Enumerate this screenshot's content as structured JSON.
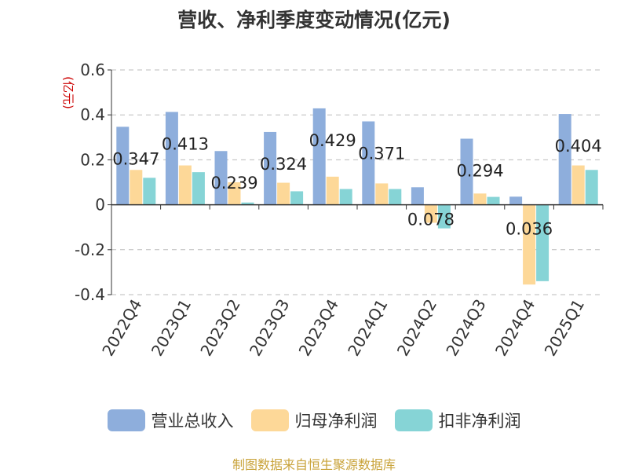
{
  "chart_data": {
    "type": "bar",
    "title": "营收、净利季度变动情况(亿元)",
    "ylabel": "(亿元)",
    "ylim": [
      -0.4,
      0.6
    ],
    "yticks": [
      "0.6",
      "0.4",
      "0.2",
      "0",
      "-0.2",
      "-0.4"
    ],
    "ytick_values": [
      0.6,
      0.4,
      0.2,
      0,
      -0.2,
      -0.4
    ],
    "grid": true,
    "legend_position": "bottom",
    "categories": [
      "2022Q4",
      "2023Q1",
      "2023Q2",
      "2023Q3",
      "2023Q4",
      "2024Q1",
      "2024Q2",
      "2024Q3",
      "2024Q4",
      "2025Q1"
    ],
    "series": [
      {
        "name": "营业总收入",
        "color": "#8eaedc",
        "values": [
          0.347,
          0.413,
          0.239,
          0.324,
          0.429,
          0.371,
          0.078,
          0.294,
          0.036,
          0.404
        ],
        "labels": [
          "0.347",
          "0.413",
          "0.239",
          "0.324",
          "0.429",
          "0.371",
          "0.078",
          "0.294",
          "0.036",
          "0.404"
        ]
      },
      {
        "name": "归母净利润",
        "color": "#fdd898",
        "values": [
          0.155,
          0.175,
          0.1,
          0.098,
          0.125,
          0.095,
          -0.08,
          0.05,
          -0.355,
          0.175
        ]
      },
      {
        "name": "扣非净利润",
        "color": "#86d4d6",
        "values": [
          0.12,
          0.145,
          0.01,
          0.06,
          0.07,
          0.07,
          -0.105,
          0.035,
          -0.34,
          0.155
        ]
      }
    ],
    "source_note": "制图数据来自恒生聚源数据库"
  }
}
